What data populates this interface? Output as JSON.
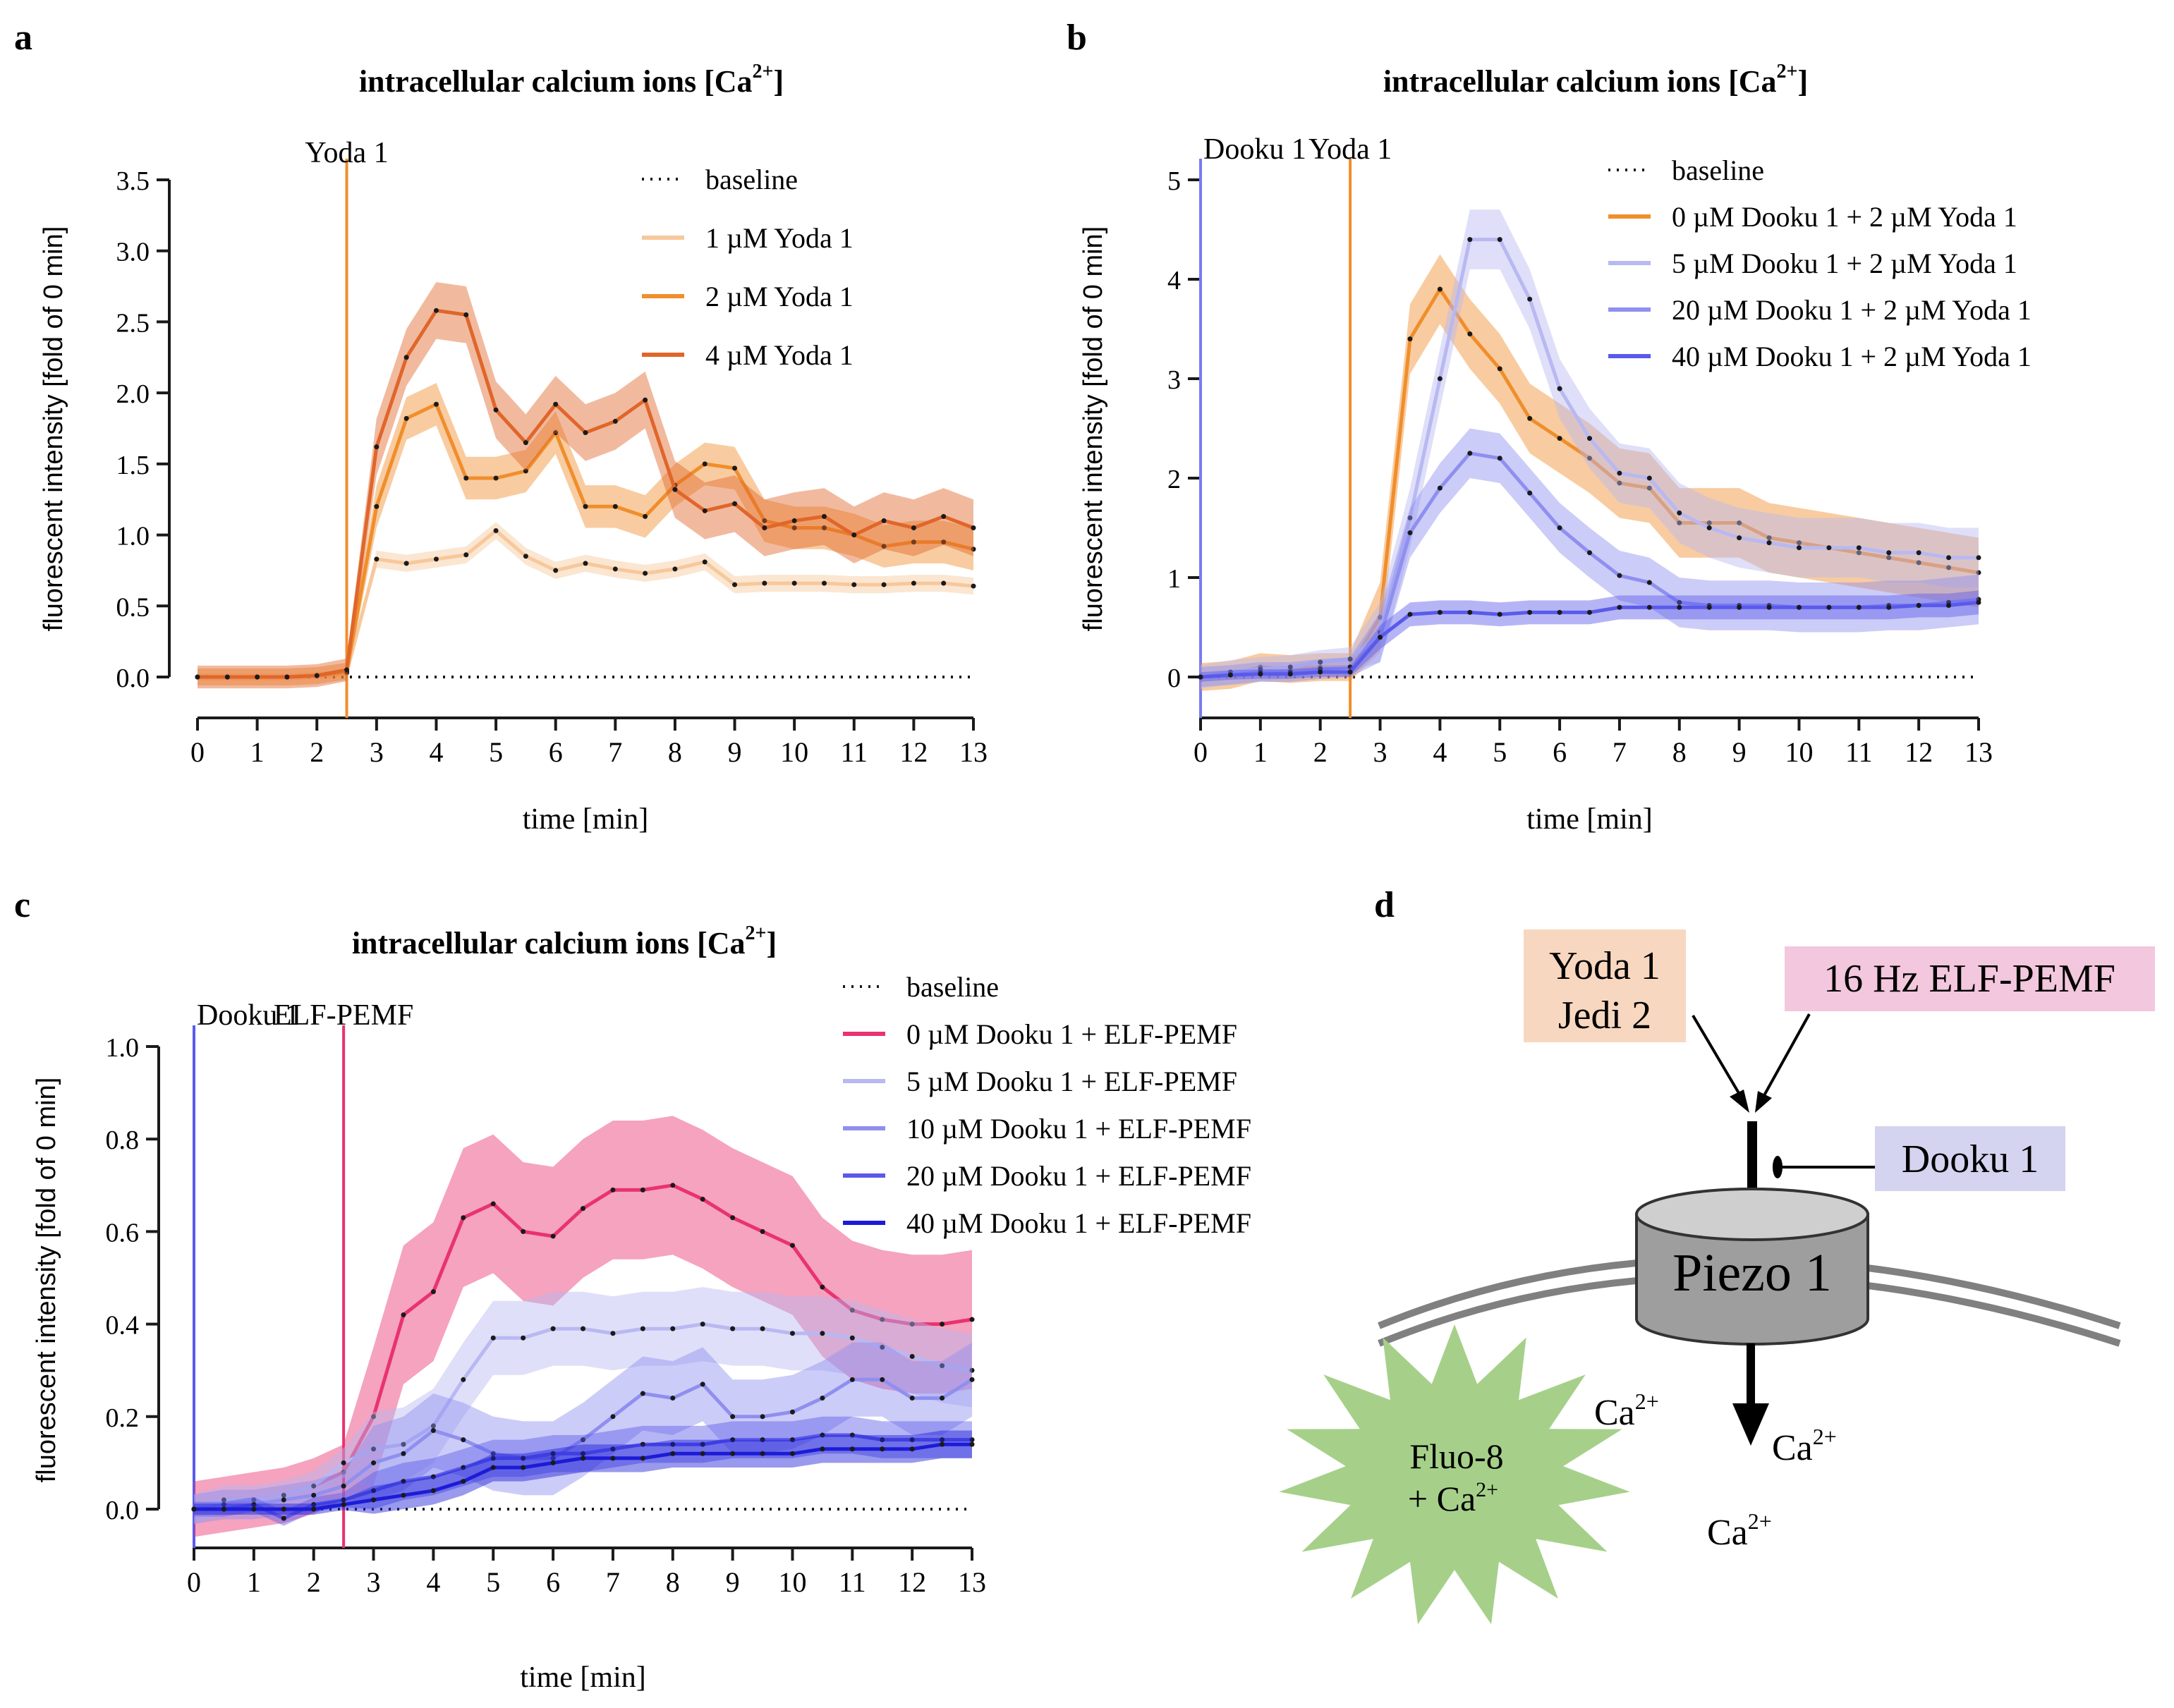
{
  "panels": {
    "a": {
      "letter": "a",
      "title": "intracellular calcium ions [Ca",
      "title_sup": "2+",
      "title_end": "]"
    },
    "b": {
      "letter": "b",
      "title": "intracellular calcium ions [Ca",
      "title_sup": "2+",
      "title_end": "]"
    },
    "c": {
      "letter": "c",
      "title": "intracellular calcium ions [Ca",
      "title_sup": "2+",
      "title_end": "]"
    },
    "d": {
      "letter": "d"
    }
  },
  "colors": {
    "orange_light": "#f7c89b",
    "orange_mid": "#f08e2c",
    "orange_dark": "#e0662a",
    "pink": "#e8336f",
    "blue_pale": "#b8b8f2",
    "blue_light": "#8f8ff0",
    "blue_mid": "#5a5aea",
    "blue_dark": "#1c1cd6",
    "axis": "#1a1a1a"
  },
  "chart_data": [
    {
      "id": "a",
      "type": "line",
      "title": "intracellular calcium ions [Ca2+]",
      "xlabel": "time [min]",
      "ylabel": "fluorescent intensity [fold of 0 min]",
      "xlim": [
        0,
        13
      ],
      "ylim": [
        0,
        3.5
      ],
      "xticks": [
        0,
        1,
        2,
        3,
        4,
        5,
        6,
        7,
        8,
        9,
        10,
        11,
        12,
        13
      ],
      "xtick_labels": [
        "0",
        "1",
        "2",
        "3",
        "4",
        "5",
        "6",
        "7",
        "8",
        "9",
        "10",
        "11",
        "12",
        "13"
      ],
      "yticks": [
        0,
        0.5,
        1.0,
        1.5,
        2.0,
        2.5,
        3.0,
        3.5
      ],
      "ytick_labels": [
        "0.0",
        "0.5",
        "1.0",
        "1.5",
        "2.0",
        "2.5",
        "3.0",
        "3.5"
      ],
      "annotations": [
        {
          "x": 2.5,
          "label": "Yoda 1",
          "color": "#f08e2c"
        }
      ],
      "legend_position": "top-right",
      "x": [
        0,
        0.5,
        1,
        1.5,
        2,
        2.5,
        3,
        3.5,
        4,
        4.5,
        5,
        5.5,
        6,
        6.5,
        7,
        7.5,
        8,
        8.5,
        9,
        9.5,
        10,
        10.5,
        11,
        11.5,
        12,
        12.5,
        13
      ],
      "series": [
        {
          "name": "baseline",
          "style": "dotted",
          "color": "#1a1a1a",
          "values": [
            0,
            0,
            0,
            0,
            0,
            0,
            0,
            0,
            0,
            0,
            0,
            0,
            0,
            0,
            0,
            0,
            0,
            0,
            0,
            0,
            0,
            0,
            0,
            0,
            0,
            0,
            0
          ]
        },
        {
          "name": "1 µM Yoda 1",
          "color": "#f7c89b",
          "band": 0.06,
          "values": [
            0,
            0,
            0,
            0,
            0.01,
            0.03,
            0.83,
            0.8,
            0.83,
            0.86,
            1.03,
            0.85,
            0.75,
            0.8,
            0.76,
            0.73,
            0.76,
            0.81,
            0.65,
            0.66,
            0.66,
            0.66,
            0.65,
            0.65,
            0.66,
            0.66,
            0.64
          ]
        },
        {
          "name": "2 µM Yoda 1",
          "color": "#f08e2c",
          "band": 0.15,
          "values": [
            0,
            0,
            0,
            0,
            0.01,
            0.04,
            1.2,
            1.82,
            1.92,
            1.4,
            1.4,
            1.45,
            1.72,
            1.2,
            1.2,
            1.13,
            1.35,
            1.5,
            1.47,
            1.1,
            1.05,
            1.05,
            1.0,
            0.92,
            0.95,
            0.95,
            0.9
          ]
        },
        {
          "name": "4 µM Yoda 1",
          "color": "#e0662a",
          "band": 0.2,
          "values": [
            0,
            0,
            0,
            0,
            0.01,
            0.05,
            1.62,
            2.25,
            2.58,
            2.55,
            1.88,
            1.65,
            1.92,
            1.72,
            1.8,
            1.95,
            1.32,
            1.17,
            1.22,
            1.05,
            1.1,
            1.13,
            1.0,
            1.1,
            1.05,
            1.13,
            1.05
          ]
        }
      ]
    },
    {
      "id": "b",
      "type": "line",
      "title": "intracellular calcium ions [Ca2+]",
      "xlabel": "time [min]",
      "ylabel": "fluorescent intensity [fold of 0 min]",
      "xlim": [
        0,
        13
      ],
      "ylim": [
        0,
        5
      ],
      "xticks": [
        0,
        1,
        2,
        3,
        4,
        5,
        6,
        7,
        8,
        9,
        10,
        11,
        12,
        13
      ],
      "xtick_labels": [
        "0",
        "1",
        "2",
        "3",
        "4",
        "5",
        "6",
        "7",
        "8",
        "9",
        "10",
        "11",
        "12",
        "13"
      ],
      "yticks": [
        0,
        1,
        2,
        3,
        4,
        5
      ],
      "ytick_labels": [
        "0",
        "1",
        "2",
        "3",
        "4",
        "5"
      ],
      "annotations": [
        {
          "x": 0,
          "label": "Dooku 1",
          "color": "#7a7af0"
        },
        {
          "x": 2.5,
          "label": "Yoda 1",
          "color": "#f08e2c"
        }
      ],
      "legend_position": "top-right",
      "x": [
        0,
        0.5,
        1,
        1.5,
        2,
        2.5,
        3,
        3.5,
        4,
        4.5,
        5,
        5.5,
        6,
        6.5,
        7,
        7.5,
        8,
        8.5,
        9,
        9.5,
        10,
        10.5,
        11,
        11.5,
        12,
        12.5,
        13
      ],
      "series": [
        {
          "name": "baseline",
          "style": "dotted",
          "color": "#1a1a1a",
          "values": [
            0,
            0,
            0,
            0,
            0,
            0,
            0,
            0,
            0,
            0,
            0,
            0,
            0,
            0,
            0,
            0,
            0,
            0,
            0,
            0,
            0,
            0,
            0,
            0,
            0,
            0,
            0
          ]
        },
        {
          "name": "0 µM Dooku 1 + 2 µM Yoda 1",
          "color": "#f08e2c",
          "band": 0.35,
          "values": [
            0,
            0.02,
            0.1,
            0.08,
            0.1,
            0.1,
            0.6,
            3.4,
            3.9,
            3.45,
            3.1,
            2.6,
            2.4,
            2.2,
            1.95,
            1.9,
            1.55,
            1.55,
            1.55,
            1.4,
            1.35,
            1.3,
            1.25,
            1.2,
            1.15,
            1.1,
            1.05
          ]
        },
        {
          "name": "5 µM Dooku 1 + 2 µM Yoda 1",
          "color": "#b8b8f2",
          "band": 0.3,
          "values": [
            0,
            0.05,
            0.08,
            0.1,
            0.15,
            0.18,
            0.45,
            1.6,
            3.0,
            4.4,
            4.4,
            3.8,
            2.9,
            2.4,
            2.05,
            2.0,
            1.65,
            1.5,
            1.4,
            1.35,
            1.3,
            1.3,
            1.3,
            1.25,
            1.25,
            1.2,
            1.2
          ]
        },
        {
          "name": "20 µM Dooku 1 + 2 µM Yoda 1",
          "color": "#8f8ff0",
          "band": 0.25,
          "values": [
            0,
            0.02,
            0.05,
            0.05,
            0.08,
            0.1,
            0.4,
            1.45,
            1.9,
            2.25,
            2.2,
            1.85,
            1.5,
            1.25,
            1.02,
            0.95,
            0.75,
            0.72,
            0.72,
            0.72,
            0.7,
            0.7,
            0.7,
            0.72,
            0.72,
            0.75,
            0.78
          ]
        },
        {
          "name": "40 µM Dooku 1 + 2 µM Yoda 1",
          "color": "#5a5aea",
          "band": 0.12,
          "values": [
            0,
            0.02,
            0.03,
            0.03,
            0.05,
            0.05,
            0.4,
            0.63,
            0.65,
            0.65,
            0.63,
            0.65,
            0.65,
            0.65,
            0.7,
            0.7,
            0.7,
            0.7,
            0.7,
            0.7,
            0.7,
            0.7,
            0.7,
            0.7,
            0.72,
            0.72,
            0.75
          ]
        }
      ]
    },
    {
      "id": "c",
      "type": "line",
      "title": "intracellular calcium ions [Ca2+]",
      "xlabel": "time [min]",
      "ylabel": "fluorescent intensity [fold of 0 min]",
      "xlim": [
        0,
        13
      ],
      "ylim": [
        0,
        1.0
      ],
      "xticks": [
        0,
        1,
        2,
        3,
        4,
        5,
        6,
        7,
        8,
        9,
        10,
        11,
        12,
        13
      ],
      "xtick_labels": [
        "0",
        "1",
        "2",
        "3",
        "4",
        "5",
        "6",
        "7",
        "8",
        "9",
        "10",
        "11",
        "12",
        "13"
      ],
      "yticks": [
        0,
        0.2,
        0.4,
        0.6,
        0.8,
        1.0
      ],
      "ytick_labels": [
        "0.0",
        "0.2",
        "0.4",
        "0.6",
        "0.8",
        "1.0"
      ],
      "annotations": [
        {
          "x": 0,
          "label": "Dooku 1",
          "color": "#5a5aea"
        },
        {
          "x": 2.5,
          "label": "ELF-PEMF",
          "color": "#e8336f"
        }
      ],
      "legend_position": "top-right",
      "x": [
        0,
        0.5,
        1,
        1.5,
        2,
        2.5,
        3,
        3.5,
        4,
        4.5,
        5,
        5.5,
        6,
        6.5,
        7,
        7.5,
        8,
        8.5,
        9,
        9.5,
        10,
        10.5,
        11,
        11.5,
        12,
        12.5,
        13
      ],
      "series": [
        {
          "name": "baseline",
          "style": "dotted",
          "color": "#1a1a1a",
          "values": [
            0,
            0,
            0,
            0,
            0,
            0,
            0,
            0,
            0,
            0,
            0,
            0,
            0,
            0,
            0,
            0,
            0,
            0,
            0,
            0,
            0,
            0,
            0,
            0,
            0,
            0,
            0
          ]
        },
        {
          "name": "0 µM Dooku 1 + ELF-PEMF",
          "color": "#e8336f",
          "band": 0.15,
          "values": [
            0,
            0.01,
            0.02,
            0.03,
            0.05,
            0.08,
            0.2,
            0.42,
            0.47,
            0.63,
            0.66,
            0.6,
            0.59,
            0.65,
            0.69,
            0.69,
            0.7,
            0.67,
            0.63,
            0.6,
            0.57,
            0.48,
            0.43,
            0.41,
            0.4,
            0.4,
            0.41
          ]
        },
        {
          "name": "5 µM Dooku 1 + ELF-PEMF",
          "color": "#b8b8f2",
          "band": 0.08,
          "values": [
            0,
            0.02,
            0.02,
            0.03,
            0.05,
            0.1,
            0.13,
            0.14,
            0.18,
            0.28,
            0.37,
            0.37,
            0.39,
            0.39,
            0.38,
            0.39,
            0.39,
            0.4,
            0.39,
            0.39,
            0.38,
            0.38,
            0.37,
            0.35,
            0.33,
            0.31,
            0.3
          ]
        },
        {
          "name": "10 µM Dooku 1 + ELF-PEMF",
          "color": "#8f8ff0",
          "band": 0.08,
          "values": [
            0,
            0.01,
            0.01,
            0.02,
            0.03,
            0.05,
            0.1,
            0.12,
            0.17,
            0.15,
            0.12,
            0.11,
            0.11,
            0.15,
            0.2,
            0.25,
            0.24,
            0.27,
            0.2,
            0.2,
            0.21,
            0.24,
            0.28,
            0.28,
            0.24,
            0.24,
            0.28
          ]
        },
        {
          "name": "20 µM Dooku 1 + ELF-PEMF",
          "color": "#5a5aea",
          "band": 0.04,
          "values": [
            0,
            0.0,
            0.01,
            -0.02,
            0.01,
            0.02,
            0.04,
            0.06,
            0.07,
            0.09,
            0.11,
            0.11,
            0.12,
            0.12,
            0.13,
            0.14,
            0.14,
            0.14,
            0.15,
            0.15,
            0.15,
            0.16,
            0.16,
            0.15,
            0.15,
            0.15,
            0.15
          ]
        },
        {
          "name": "40 µM Dooku 1 + ELF-PEMF",
          "color": "#1c1cd6",
          "band": 0.03,
          "values": [
            0,
            0.0,
            0.0,
            0.0,
            0.0,
            0.01,
            0.02,
            0.03,
            0.04,
            0.06,
            0.09,
            0.09,
            0.1,
            0.11,
            0.11,
            0.11,
            0.12,
            0.12,
            0.12,
            0.12,
            0.12,
            0.13,
            0.13,
            0.13,
            0.13,
            0.14,
            0.14
          ]
        }
      ]
    }
  ],
  "diagram": {
    "box_yoda_line1": "Yoda 1",
    "box_yoda_line2": "Jedi 2",
    "box_pemf": "16 Hz ELF-PEMF",
    "box_dooku": "Dooku 1",
    "channel_label": "Piezo 1",
    "ca_base": "Ca",
    "ca_sup": "2+",
    "star_line1": "Fluo-8",
    "star_line2": "+ Ca",
    "star_sup": "2+"
  }
}
